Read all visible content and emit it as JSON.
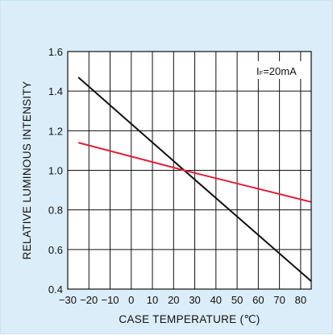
{
  "chart_data": {
    "type": "line",
    "xlabel": "CASE TEMPERATURE (℃)",
    "ylabel": "RELATIVE LUMINOUS INTENSITY",
    "xlim": [
      -30,
      85
    ],
    "ylim": [
      0.4,
      1.6
    ],
    "x_ticks": [
      "−30",
      "−20",
      "−10",
      "0",
      "10",
      "20",
      "30",
      "40",
      "50",
      "60",
      "70",
      "80"
    ],
    "x_tick_values": [
      -30,
      -20,
      -10,
      0,
      10,
      20,
      30,
      40,
      50,
      60,
      70,
      80
    ],
    "y_ticks": [
      "0.4",
      "0.6",
      "0.8",
      "1.0",
      "1.2",
      "1.4",
      "1.6"
    ],
    "y_tick_values": [
      0.4,
      0.6,
      0.8,
      1.0,
      1.2,
      1.4,
      1.6
    ],
    "grid": true,
    "annotation": {
      "main": "I",
      "sub": "F",
      "rest": "=20mA"
    },
    "series": [
      {
        "color": "#111111",
        "x": [
          -25,
          25,
          85
        ],
        "y": [
          1.47,
          1.0,
          0.44
        ]
      },
      {
        "color": "#e0223a",
        "x": [
          -25,
          25,
          85
        ],
        "y": [
          1.14,
          1.0,
          0.84
        ]
      }
    ]
  }
}
